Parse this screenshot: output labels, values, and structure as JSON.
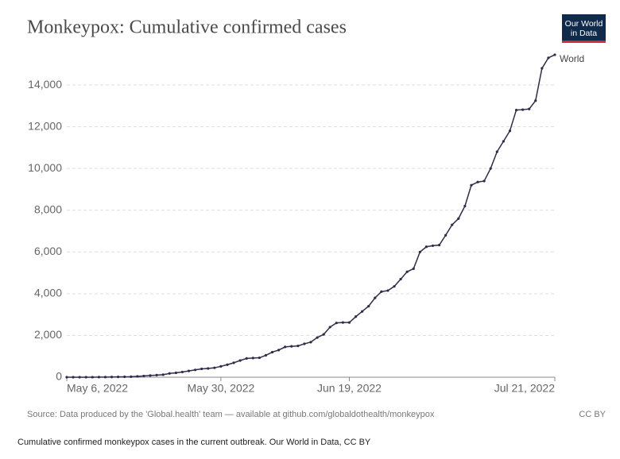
{
  "chart_data": {
    "type": "line",
    "title": "Monkeypox: Cumulative confirmed cases",
    "logo": [
      "Our World",
      "in Data"
    ],
    "source": "Source: Data produced by the 'Global.health' team — available at github.com/globaldothealth/monkeypox",
    "license": "CC BY",
    "caption": "Cumulative confirmed monkeypox cases in the current outbreak. Our World in Data, CC BY",
    "x": [
      "2022-05-06",
      "2022-05-07",
      "2022-05-08",
      "2022-05-09",
      "2022-05-10",
      "2022-05-11",
      "2022-05-12",
      "2022-05-13",
      "2022-05-14",
      "2022-05-15",
      "2022-05-16",
      "2022-05-17",
      "2022-05-18",
      "2022-05-19",
      "2022-05-20",
      "2022-05-21",
      "2022-05-22",
      "2022-05-23",
      "2022-05-24",
      "2022-05-25",
      "2022-05-26",
      "2022-05-27",
      "2022-05-28",
      "2022-05-29",
      "2022-05-30",
      "2022-05-31",
      "2022-06-01",
      "2022-06-02",
      "2022-06-03",
      "2022-06-04",
      "2022-06-05",
      "2022-06-06",
      "2022-06-07",
      "2022-06-08",
      "2022-06-09",
      "2022-06-10",
      "2022-06-11",
      "2022-06-12",
      "2022-06-13",
      "2022-06-14",
      "2022-06-15",
      "2022-06-16",
      "2022-06-17",
      "2022-06-18",
      "2022-06-19",
      "2022-06-20",
      "2022-06-21",
      "2022-06-22",
      "2022-06-23",
      "2022-06-24",
      "2022-06-25",
      "2022-06-26",
      "2022-06-27",
      "2022-06-28",
      "2022-06-29",
      "2022-06-30",
      "2022-07-01",
      "2022-07-02",
      "2022-07-03",
      "2022-07-04",
      "2022-07-05",
      "2022-07-06",
      "2022-07-07",
      "2022-07-08",
      "2022-07-09",
      "2022-07-10",
      "2022-07-11",
      "2022-07-12",
      "2022-07-13",
      "2022-07-14",
      "2022-07-15",
      "2022-07-16",
      "2022-07-17",
      "2022-07-18",
      "2022-07-19",
      "2022-07-20",
      "2022-07-21"
    ],
    "series": [
      {
        "name": "World",
        "color": "#2e2c4a",
        "values": [
          0,
          0,
          1,
          1,
          2,
          5,
          7,
          10,
          15,
          20,
          25,
          40,
          60,
          80,
          100,
          120,
          180,
          210,
          250,
          300,
          350,
          400,
          420,
          450,
          520,
          600,
          690,
          800,
          900,
          920,
          930,
          1050,
          1200,
          1300,
          1450,
          1480,
          1500,
          1600,
          1680,
          1900,
          2050,
          2400,
          2600,
          2620,
          2620,
          2900,
          3150,
          3400,
          3800,
          4100,
          4150,
          4350,
          4700,
          5050,
          5200,
          6000,
          6250,
          6300,
          6330,
          6800,
          7300,
          7600,
          8200,
          9200,
          9350,
          9400,
          10000,
          10800,
          11300,
          11800,
          12800,
          12820,
          12850,
          13250,
          14800,
          15300,
          15450
        ]
      }
    ],
    "xlim": [
      "2022-05-06",
      "2022-07-21"
    ],
    "xticks": [
      {
        "value": "2022-05-06",
        "label": "May 6, 2022"
      },
      {
        "value": "2022-05-30",
        "label": "May 30, 2022"
      },
      {
        "value": "2022-06-19",
        "label": "Jun 19, 2022"
      },
      {
        "value": "2022-07-21",
        "label": "Jul 21, 2022"
      }
    ],
    "ylim": [
      0,
      15600
    ],
    "yticks": [
      0,
      {
        "value": 2000,
        "label": "2,000"
      },
      {
        "value": 4000,
        "label": "4,000"
      },
      {
        "value": 6000,
        "label": "6,000"
      },
      {
        "value": 8000,
        "label": "8,000"
      },
      {
        "value": 10000,
        "label": "10,000"
      },
      {
        "value": 12000,
        "label": "12,000"
      },
      {
        "value": 14000,
        "label": "14,000"
      }
    ],
    "grid": true
  }
}
